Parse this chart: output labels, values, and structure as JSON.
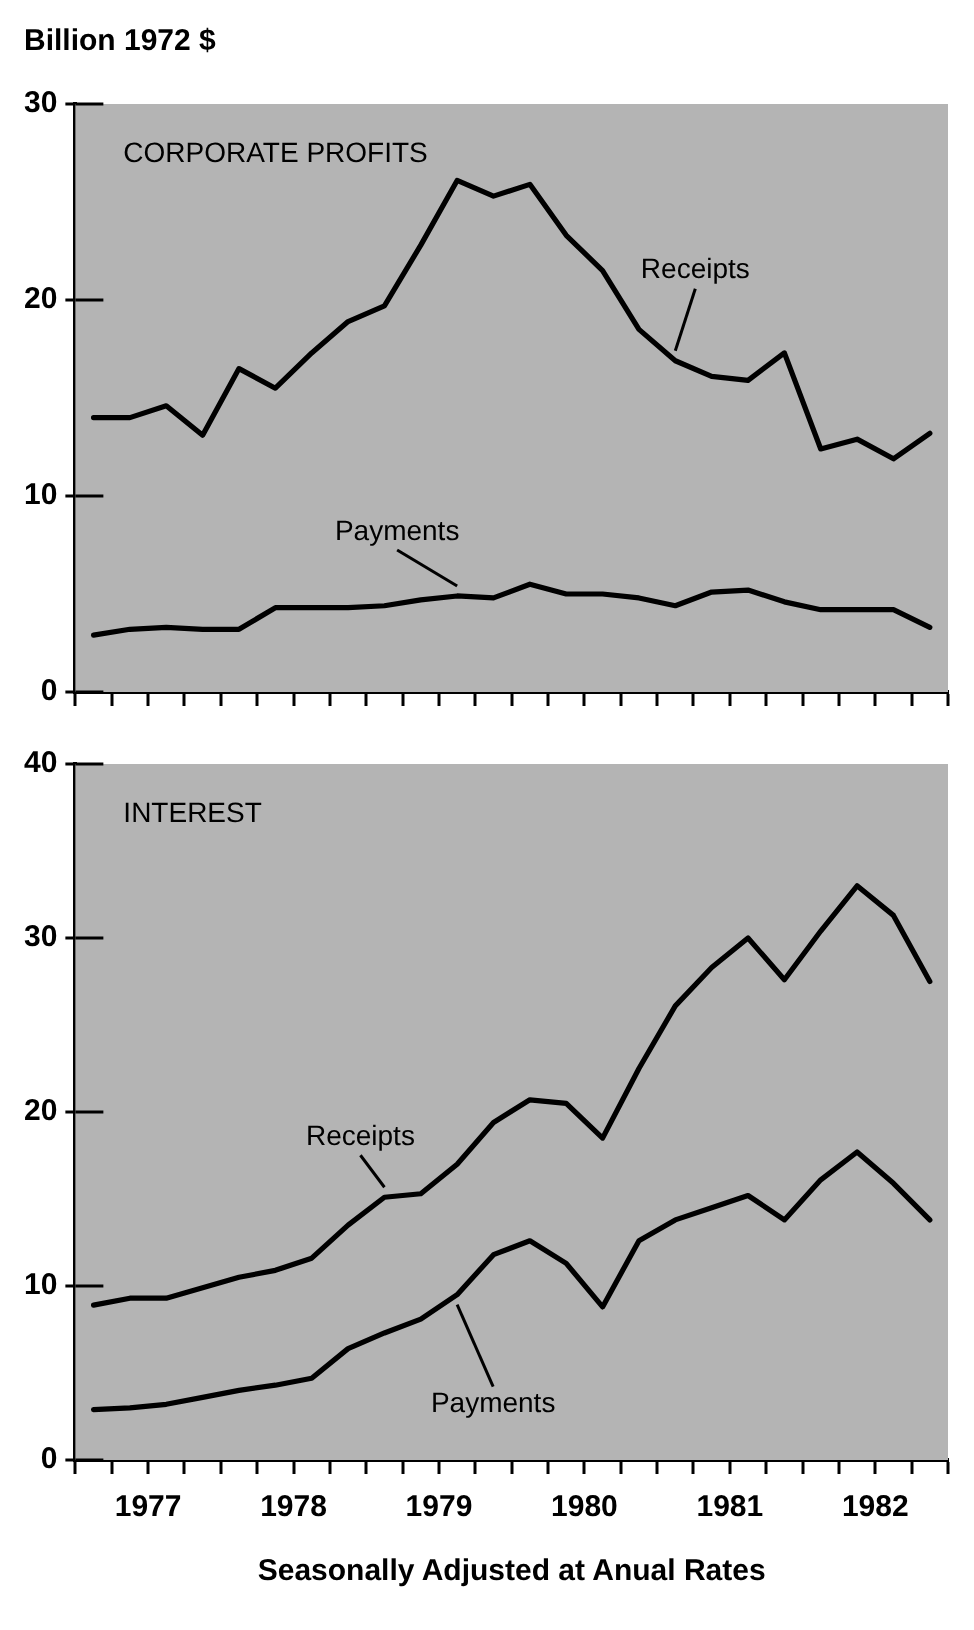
{
  "chart_data": [
    {
      "type": "line",
      "ylabel": "Billion 1972 $",
      "annotations": [
        "CORPORATE PROFITS"
      ],
      "x": [
        1977.125,
        1977.375,
        1977.625,
        1977.875,
        1978.125,
        1978.375,
        1978.625,
        1978.875,
        1979.125,
        1979.375,
        1979.625,
        1979.875,
        1980.125,
        1980.375,
        1980.625,
        1980.875,
        1981.125,
        1981.375,
        1981.625,
        1981.875,
        1982.125,
        1982.375,
        1982.625,
        1982.875
      ],
      "series": [
        {
          "name": "Receipts",
          "color": "#000000",
          "values": [
            14.0,
            14.0,
            14.6,
            13.1,
            16.5,
            15.5,
            17.3,
            18.9,
            19.7,
            22.8,
            26.1,
            25.3,
            25.9,
            23.3,
            21.5,
            18.5,
            16.9,
            16.1,
            15.9,
            17.3,
            12.4,
            12.9,
            11.9,
            13.2
          ]
        },
        {
          "name": "Payments",
          "color": "#000000",
          "values": [
            2.9,
            3.2,
            3.3,
            3.2,
            3.2,
            4.3,
            4.3,
            4.3,
            4.4,
            4.7,
            4.9,
            4.8,
            5.5,
            5.0,
            5.0,
            4.8,
            4.4,
            5.1,
            5.2,
            4.6,
            4.2,
            4.2,
            4.2,
            3.3
          ]
        }
      ],
      "xlim": [
        1977,
        1983
      ],
      "xticks": [
        {
          "value": 1977,
          "label": null
        },
        {
          "value": 1977.25,
          "label": null
        },
        {
          "value": 1977.5,
          "label": null
        },
        {
          "value": 1977.75,
          "label": null
        },
        {
          "value": 1978,
          "label": null
        },
        {
          "value": 1978.25,
          "label": null
        },
        {
          "value": 1978.5,
          "label": null
        },
        {
          "value": 1978.75,
          "label": null
        },
        {
          "value": 1979,
          "label": null
        },
        {
          "value": 1979.25,
          "label": null
        },
        {
          "value": 1979.5,
          "label": null
        },
        {
          "value": 1979.75,
          "label": null
        },
        {
          "value": 1980,
          "label": null
        },
        {
          "value": 1980.25,
          "label": null
        },
        {
          "value": 1980.5,
          "label": null
        },
        {
          "value": 1980.75,
          "label": null
        },
        {
          "value": 1981,
          "label": null
        },
        {
          "value": 1981.25,
          "label": null
        },
        {
          "value": 1981.5,
          "label": null
        },
        {
          "value": 1981.75,
          "label": null
        },
        {
          "value": 1982,
          "label": null
        },
        {
          "value": 1982.25,
          "label": null
        },
        {
          "value": 1982.5,
          "label": null
        },
        {
          "value": 1982.75,
          "label": null
        },
        {
          "value": 1983,
          "label": null
        }
      ],
      "ylim": [
        0,
        30
      ],
      "yticks": [
        0,
        10,
        20,
        30
      ],
      "tick_labels": "y",
      "grid": false,
      "legend": false,
      "marker": "none",
      "line_style": "solid"
    },
    {
      "type": "line",
      "xlabel": "Seasonally Adjusted at Anual Rates",
      "annotations": [
        "INTEREST"
      ],
      "x": [
        1977.125,
        1977.375,
        1977.625,
        1977.875,
        1978.125,
        1978.375,
        1978.625,
        1978.875,
        1979.125,
        1979.375,
        1979.625,
        1979.875,
        1980.125,
        1980.375,
        1980.625,
        1980.875,
        1981.125,
        1981.375,
        1981.625,
        1981.875,
        1982.125,
        1982.375,
        1982.625,
        1982.875
      ],
      "series": [
        {
          "name": "Receipts",
          "color": "#000000",
          "values": [
            8.9,
            9.3,
            9.3,
            9.9,
            10.5,
            10.9,
            11.6,
            13.5,
            15.1,
            15.3,
            17.0,
            19.4,
            20.7,
            20.5,
            18.5,
            22.5,
            26.1,
            28.3,
            30.0,
            27.6,
            30.4,
            33.0,
            31.3,
            27.5
          ]
        },
        {
          "name": "Payments",
          "color": "#000000",
          "values": [
            2.9,
            3.0,
            3.2,
            3.6,
            4.0,
            4.3,
            4.7,
            6.4,
            7.3,
            8.1,
            9.5,
            11.8,
            12.6,
            11.3,
            8.8,
            12.6,
            13.8,
            14.5,
            15.2,
            13.8,
            16.1,
            17.7,
            15.9,
            13.8
          ]
        }
      ],
      "xlim": [
        1977,
        1983
      ],
      "xticks": [
        {
          "value": 1977,
          "label": null
        },
        {
          "value": 1977.25,
          "label": null
        },
        {
          "value": 1977.5,
          "label": "1977"
        },
        {
          "value": 1977.75,
          "label": null
        },
        {
          "value": 1978,
          "label": null
        },
        {
          "value": 1978.25,
          "label": null
        },
        {
          "value": 1978.5,
          "label": "1978"
        },
        {
          "value": 1978.75,
          "label": null
        },
        {
          "value": 1979,
          "label": null
        },
        {
          "value": 1979.25,
          "label": null
        },
        {
          "value": 1979.5,
          "label": "1979"
        },
        {
          "value": 1979.75,
          "label": null
        },
        {
          "value": 1980,
          "label": null
        },
        {
          "value": 1980.25,
          "label": null
        },
        {
          "value": 1980.5,
          "label": "1980"
        },
        {
          "value": 1980.75,
          "label": null
        },
        {
          "value": 1981,
          "label": null
        },
        {
          "value": 1981.25,
          "label": null
        },
        {
          "value": 1981.5,
          "label": "1981"
        },
        {
          "value": 1981.75,
          "label": null
        },
        {
          "value": 1982,
          "label": null
        },
        {
          "value": 1982.25,
          "label": null
        },
        {
          "value": 1982.5,
          "label": "1982"
        },
        {
          "value": 1982.75,
          "label": null
        },
        {
          "value": 1983,
          "label": null
        }
      ],
      "ylim": [
        0,
        40
      ],
      "yticks": [
        0,
        10,
        20,
        30,
        40
      ],
      "grid": false,
      "legend": false,
      "marker": "none",
      "line_style": "solid"
    }
  ]
}
